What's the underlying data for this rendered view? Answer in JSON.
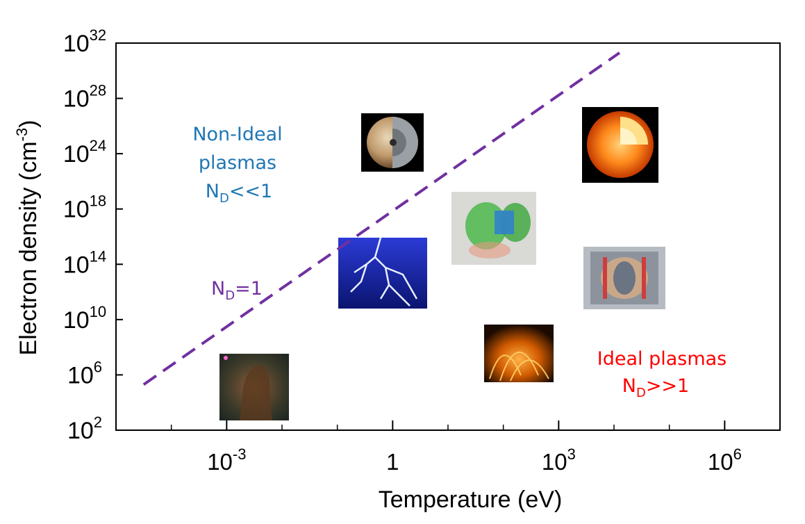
{
  "colors": {
    "boundary": "#7030a0",
    "non_ideal": "#1f77b4",
    "ideal": "#ff0000",
    "axis": "#000000"
  },
  "chart_data": {
    "type": "scatter",
    "xlabel": "Temperature (eV)",
    "ylabel": "Electron density (cm",
    "ylabel_exp": "-3",
    "ylabel_close": ")",
    "x_scale": "log",
    "y_scale": "log",
    "xlim_log10": [
      -5,
      7
    ],
    "ylim_log10": [
      2,
      32
    ],
    "grid": false,
    "x_ticks": [
      {
        "base": "10",
        "exp": "-3",
        "log": -3
      },
      {
        "base": "1",
        "exp": "",
        "log": 0
      },
      {
        "base": "10",
        "exp": "3",
        "log": 3
      },
      {
        "base": "10",
        "exp": "6",
        "log": 6
      }
    ],
    "x_minor_ticks_log": [
      -4,
      -2,
      -1,
      1,
      2,
      4,
      5
    ],
    "y_ticks": [
      {
        "base": "10",
        "exp": "32",
        "log": 32
      },
      {
        "base": "10",
        "exp": "28",
        "log": 28
      },
      {
        "base": "10",
        "exp": "24",
        "log": 24
      },
      {
        "base": "10",
        "exp": "18",
        "log": 18
      },
      {
        "base": "10",
        "exp": "14",
        "log": 14
      },
      {
        "base": "10",
        "exp": "10",
        "log": 10
      },
      {
        "base": "10",
        "exp": "6",
        "log": 6
      },
      {
        "base": "10",
        "exp": "2",
        "log": 2
      }
    ],
    "series": [
      {
        "style": "dashed",
        "x_log10": [
          -4.5,
          4.1
        ],
        "y_log10": [
          5.3,
          31.3
        ]
      }
    ],
    "annotations": [
      {
        "key": "non_ideal",
        "lines": [
          "Non-Ideal",
          "plasmas"
        ],
        "nd_text": "<<1"
      },
      {
        "key": "boundary",
        "nd_text": "=1"
      },
      {
        "key": "ideal",
        "lines": [
          "Ideal plasmas"
        ],
        "nd_text": ">>1"
      }
    ],
    "nd_symbol": "N",
    "nd_subscript": "D"
  }
}
